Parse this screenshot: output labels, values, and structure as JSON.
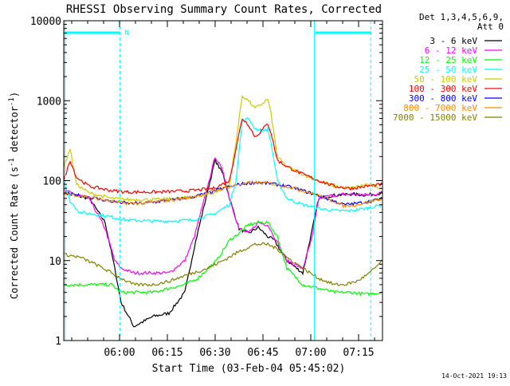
{
  "chart_data": {
    "type": "line",
    "title": "RHESSI Observing Summary Count Rates, Corrected",
    "xlabel": "Start Time (03-Feb-04 05:45:02)",
    "ylabel_main": "Corrected Count Rate (s",
    "ylabel_sup1": "-1",
    "ylabel_mid": " detector",
    "ylabel_sup2": "-1",
    "ylabel_end": ")",
    "y_scale": "log",
    "ylim": [
      1,
      10000
    ],
    "xlim": [
      0,
      100
    ],
    "x_ticks": [
      {
        "x": 17.5,
        "label": "06:00"
      },
      {
        "x": 32.5,
        "label": "06:15"
      },
      {
        "x": 47.5,
        "label": "06:30"
      },
      {
        "x": 62.5,
        "label": "06:45"
      },
      {
        "x": 77.5,
        "label": "07:00"
      },
      {
        "x": 92.5,
        "label": "07:15"
      }
    ],
    "y_ticks": [
      {
        "y": 1,
        "label": "1"
      },
      {
        "y": 10,
        "label": "10"
      },
      {
        "y": 100,
        "label": "100"
      },
      {
        "y": 1000,
        "label": "1000"
      },
      {
        "y": 10000,
        "label": "10000"
      }
    ],
    "legend_header": [
      "Det 1,3,4,5,6,9,",
      "Att 0"
    ],
    "legend_position": "top-right",
    "night_marker_label": "N",
    "timestamp": "14-Oct-2021 19:13",
    "series": [
      {
        "name": "3 - 6 keV",
        "color": "#000000",
        "points": [
          [
            0,
            70
          ],
          [
            8,
            60
          ],
          [
            13,
            30
          ],
          [
            16,
            8
          ],
          [
            18,
            3
          ],
          [
            22,
            1.5
          ],
          [
            28,
            2
          ],
          [
            33,
            2.2
          ],
          [
            38,
            4
          ],
          [
            41,
            15
          ],
          [
            45,
            70
          ],
          [
            47.5,
            180
          ],
          [
            50,
            120
          ],
          [
            52,
            60
          ],
          [
            55,
            25
          ],
          [
            58,
            22
          ],
          [
            61,
            26
          ],
          [
            64,
            20
          ],
          [
            66,
            18
          ],
          [
            70,
            10
          ],
          [
            75,
            7
          ],
          [
            78,
            25
          ],
          [
            80,
            60
          ],
          [
            84,
            65
          ],
          [
            90,
            68
          ],
          [
            95,
            66
          ],
          [
            100,
            70
          ]
        ]
      },
      {
        "name": "6 - 12 keV",
        "color": "#ff00ff",
        "points": [
          [
            0,
            75
          ],
          [
            8,
            60
          ],
          [
            13,
            25
          ],
          [
            16,
            10
          ],
          [
            18,
            8
          ],
          [
            22,
            7
          ],
          [
            28,
            7
          ],
          [
            33,
            7
          ],
          [
            38,
            10
          ],
          [
            41,
            20
          ],
          [
            45,
            80
          ],
          [
            47.5,
            200
          ],
          [
            50,
            130
          ],
          [
            52,
            60
          ],
          [
            55,
            25
          ],
          [
            58,
            22
          ],
          [
            61,
            30
          ],
          [
            64,
            28
          ],
          [
            66,
            20
          ],
          [
            70,
            10
          ],
          [
            75,
            8
          ],
          [
            78,
            20
          ],
          [
            80,
            60
          ],
          [
            84,
            65
          ],
          [
            90,
            68
          ],
          [
            95,
            66
          ],
          [
            100,
            70
          ]
        ]
      },
      {
        "name": "12 - 25 keV",
        "color": "#00ff00",
        "points": [
          [
            0,
            5
          ],
          [
            5,
            5
          ],
          [
            10,
            5
          ],
          [
            15,
            5
          ],
          [
            18,
            4
          ],
          [
            22,
            4
          ],
          [
            28,
            4
          ],
          [
            33,
            4.5
          ],
          [
            38,
            5
          ],
          [
            42,
            6
          ],
          [
            48,
            10
          ],
          [
            52,
            18
          ],
          [
            55,
            22
          ],
          [
            58,
            28
          ],
          [
            61,
            30
          ],
          [
            64,
            30
          ],
          [
            67,
            20
          ],
          [
            70,
            8
          ],
          [
            75,
            5
          ],
          [
            80,
            4.5
          ],
          [
            85,
            4
          ],
          [
            90,
            4
          ],
          [
            95,
            3.8
          ],
          [
            100,
            4
          ]
        ]
      },
      {
        "name": "25 - 50 keV",
        "color": "#00ffff",
        "points": [
          [
            0,
            100
          ],
          [
            2,
            55
          ],
          [
            5,
            40
          ],
          [
            10,
            38
          ],
          [
            15,
            35
          ],
          [
            20,
            32
          ],
          [
            30,
            31
          ],
          [
            40,
            32
          ],
          [
            47,
            38
          ],
          [
            52,
            50
          ],
          [
            54,
            100
          ],
          [
            56,
            550
          ],
          [
            58,
            600
          ],
          [
            60,
            450
          ],
          [
            62,
            420
          ],
          [
            64,
            440
          ],
          [
            65,
            300
          ],
          [
            67,
            100
          ],
          [
            70,
            60
          ],
          [
            75,
            50
          ],
          [
            80,
            45
          ],
          [
            85,
            42
          ],
          [
            90,
            42
          ],
          [
            95,
            45
          ],
          [
            100,
            50
          ]
        ]
      },
      {
        "name": "50 - 100 keV",
        "color": "#cccc00",
        "points": [
          [
            0,
            150
          ],
          [
            2,
            250
          ],
          [
            4,
            90
          ],
          [
            8,
            70
          ],
          [
            15,
            60
          ],
          [
            20,
            58
          ],
          [
            30,
            58
          ],
          [
            40,
            62
          ],
          [
            47,
            70
          ],
          [
            52,
            90
          ],
          [
            54,
            300
          ],
          [
            56,
            1150
          ],
          [
            58,
            1000
          ],
          [
            60,
            800
          ],
          [
            62,
            900
          ],
          [
            64,
            1050
          ],
          [
            65,
            700
          ],
          [
            67,
            200
          ],
          [
            70,
            150
          ],
          [
            75,
            120
          ],
          [
            80,
            100
          ],
          [
            85,
            85
          ],
          [
            90,
            80
          ],
          [
            95,
            90
          ],
          [
            100,
            80
          ]
        ]
      },
      {
        "name": "100 - 300 keV",
        "color": "#ff0000",
        "points": [
          [
            0,
            100
          ],
          [
            2,
            180
          ],
          [
            4,
            110
          ],
          [
            8,
            85
          ],
          [
            15,
            75
          ],
          [
            20,
            72
          ],
          [
            30,
            72
          ],
          [
            40,
            75
          ],
          [
            47,
            80
          ],
          [
            52,
            100
          ],
          [
            54,
            250
          ],
          [
            56,
            600
          ],
          [
            58,
            500
          ],
          [
            60,
            350
          ],
          [
            62,
            420
          ],
          [
            64,
            520
          ],
          [
            65,
            400
          ],
          [
            67,
            180
          ],
          [
            70,
            150
          ],
          [
            75,
            120
          ],
          [
            80,
            100
          ],
          [
            85,
            85
          ],
          [
            90,
            80
          ],
          [
            95,
            85
          ],
          [
            100,
            90
          ]
        ]
      },
      {
        "name": "300 - 800 keV",
        "color": "#0000ff",
        "points": [
          [
            0,
            70
          ],
          [
            5,
            65
          ],
          [
            10,
            60
          ],
          [
            15,
            55
          ],
          [
            20,
            52
          ],
          [
            25,
            52
          ],
          [
            30,
            55
          ],
          [
            35,
            58
          ],
          [
            40,
            62
          ],
          [
            45,
            70
          ],
          [
            50,
            80
          ],
          [
            55,
            90
          ],
          [
            60,
            95
          ],
          [
            65,
            92
          ],
          [
            70,
            85
          ],
          [
            75,
            75
          ],
          [
            80,
            65
          ],
          [
            85,
            55
          ],
          [
            88,
            50
          ],
          [
            92,
            52
          ],
          [
            96,
            55
          ],
          [
            100,
            60
          ]
        ]
      },
      {
        "name": "800 - 7000 keV",
        "color": "#ff8c00",
        "points": [
          [
            0,
            70
          ],
          [
            5,
            65
          ],
          [
            10,
            60
          ],
          [
            15,
            55
          ],
          [
            20,
            52
          ],
          [
            25,
            52
          ],
          [
            30,
            55
          ],
          [
            35,
            58
          ],
          [
            40,
            62
          ],
          [
            45,
            70
          ],
          [
            50,
            80
          ],
          [
            55,
            90
          ],
          [
            60,
            95
          ],
          [
            65,
            92
          ],
          [
            70,
            85
          ],
          [
            75,
            75
          ],
          [
            80,
            65
          ],
          [
            85,
            55
          ],
          [
            88,
            48
          ],
          [
            92,
            50
          ],
          [
            96,
            55
          ],
          [
            100,
            60
          ]
        ]
      },
      {
        "name": "7000 - 15000 keV",
        "color": "#808000",
        "points": [
          [
            0,
            12
          ],
          [
            5,
            11
          ],
          [
            10,
            9
          ],
          [
            15,
            7
          ],
          [
            18,
            6
          ],
          [
            22,
            5
          ],
          [
            28,
            5
          ],
          [
            33,
            5.5
          ],
          [
            38,
            6.5
          ],
          [
            45,
            8
          ],
          [
            50,
            10
          ],
          [
            55,
            13
          ],
          [
            60,
            16
          ],
          [
            64,
            16
          ],
          [
            67,
            14
          ],
          [
            70,
            11
          ],
          [
            75,
            8
          ],
          [
            80,
            6
          ],
          [
            85,
            5
          ],
          [
            88,
            5
          ],
          [
            92,
            5.5
          ],
          [
            96,
            7
          ],
          [
            100,
            10
          ]
        ]
      }
    ]
  }
}
